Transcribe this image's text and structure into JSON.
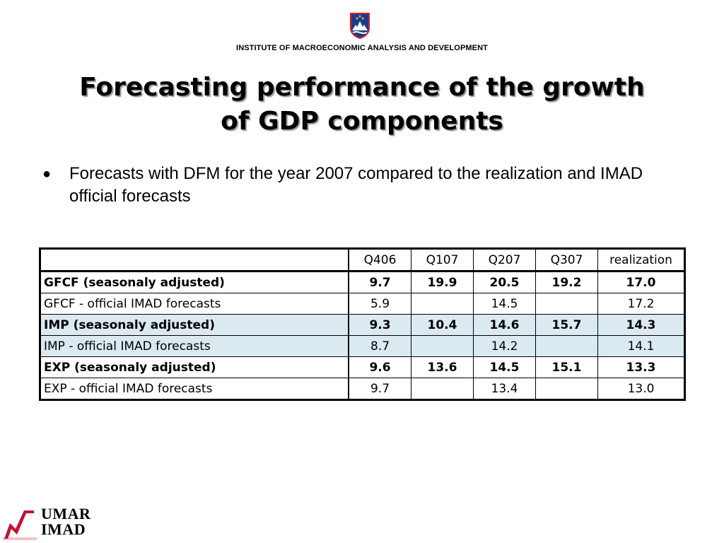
{
  "header": {
    "crest_icon": "slovenia-coat-of-arms-icon",
    "institute": "INSTITUTE OF MACROECONOMIC ANALYSIS AND DEVELOPMENT"
  },
  "slide": {
    "title_line1": "Forecasting performance of the growth",
    "title_line2": "of GDP components",
    "bullet": "Forecasts with DFM for the year 2007 compared to the realization and IMAD official forecasts"
  },
  "table": {
    "columns": [
      "",
      "Q406",
      "Q107",
      "Q207",
      "Q307",
      "realization"
    ],
    "rows": [
      {
        "label": "GFCF (seasonaly adjusted)",
        "values": [
          "9.7",
          "19.9",
          "20.5",
          "19.2",
          "17.0"
        ]
      },
      {
        "label": "GFCF - official IMAD forecasts",
        "values": [
          "5.9",
          "",
          "14.5",
          "",
          "17.2"
        ]
      },
      {
        "label": "IMP (seasonaly adjusted)",
        "values": [
          "9.3",
          "10.4",
          "14.6",
          "15.7",
          "14.3"
        ]
      },
      {
        "label": "IMP - official IMAD forecasts",
        "values": [
          "8.7",
          "",
          "14.2",
          "",
          "14.1"
        ]
      },
      {
        "label": "EXP (seasonaly adjusted)",
        "values": [
          "9.6",
          "13.6",
          "14.5",
          "15.1",
          "13.3"
        ]
      },
      {
        "label": "EXP - official IMAD forecasts",
        "values": [
          "9.7",
          "",
          "13.4",
          "",
          "13.0"
        ]
      }
    ]
  },
  "footer": {
    "logo_line1": "UMAR",
    "logo_line2": "IMAD",
    "logo_icon": "umar-imad-logo-mark-icon",
    "logo_color": "#c8102e"
  },
  "colors": {
    "row_shade": "#dbe9f1",
    "crest_blue": "#1a3c8f",
    "crest_red": "#d21f26"
  }
}
